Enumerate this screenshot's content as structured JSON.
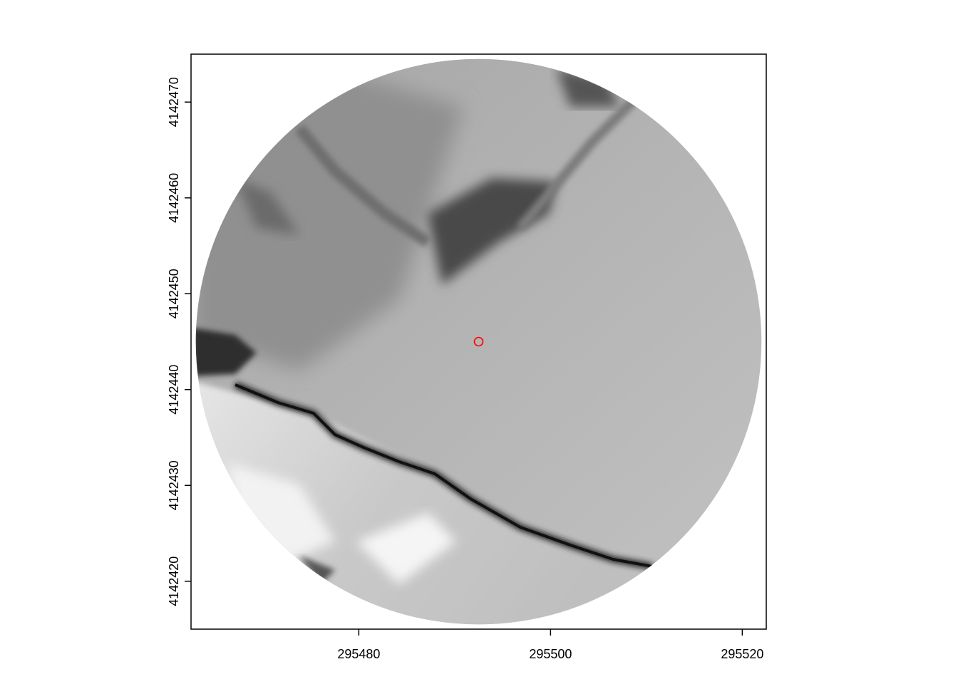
{
  "chart_data": {
    "type": "raster",
    "title": "",
    "xlabel": "",
    "ylabel": "",
    "xlim": [
      295462.5,
      295522.5
    ],
    "ylim": [
      4142415,
      4142475
    ],
    "x_ticks": [
      295480,
      295500,
      295520
    ],
    "x_tick_labels": [
      "295480",
      "295500",
      "295520"
    ],
    "y_ticks": [
      4142420,
      4142430,
      4142440,
      4142450,
      4142460,
      4142470
    ],
    "y_tick_labels": [
      "4142420",
      "4142430",
      "4142440",
      "4142450",
      "4142460",
      "4142470"
    ],
    "raster": {
      "shape": "circle",
      "center": [
        295492.5,
        4142445
      ],
      "radius": 29.5,
      "colormap": "grayscale"
    },
    "points": [
      {
        "x": 295492.5,
        "y": 4142445,
        "marker": "open-circle",
        "color": "#ff0000"
      }
    ],
    "grid": false
  }
}
